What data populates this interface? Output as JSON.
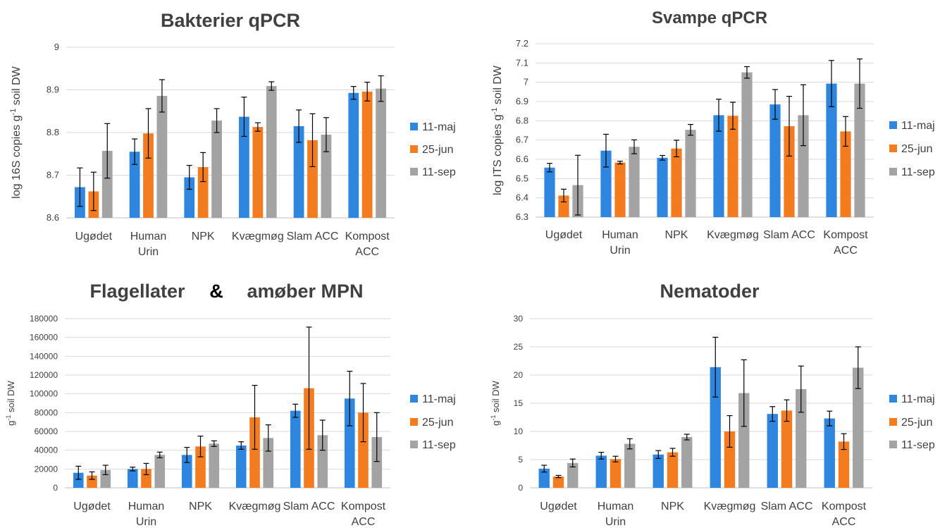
{
  "legend": {
    "entries": [
      {
        "label": "11-maj",
        "color": "#2e86de"
      },
      {
        "label": "25-jun",
        "color": "#f47c20"
      },
      {
        "label": "11-sep",
        "color": "#a3a3a3"
      }
    ]
  },
  "chart_data": [
    {
      "type": "bar",
      "title": "Bakterier qPCR",
      "ylabel": "log 16S copies g-1 soil DW",
      "ylabel_main": "log 16S copies g",
      "ylabel_sup": "-1",
      "ylabel_tail": " soil DW",
      "ylim": [
        8.6,
        9.0
      ],
      "yticks": [
        8.6,
        8.7,
        8.8,
        8.9,
        9
      ],
      "tick_labels": [
        "8.6",
        "8.7",
        "8.8",
        "8.9",
        "9"
      ],
      "grid": true,
      "legend_position": "right",
      "categories": [
        [
          "Ugødet"
        ],
        [
          "Human",
          "Urin"
        ],
        [
          "NPK"
        ],
        [
          "Kvægmøg"
        ],
        [
          "Slam ACC"
        ],
        [
          "Kompost",
          "ACC"
        ]
      ],
      "series": [
        {
          "name": "11-maj",
          "values": [
            8.672,
            8.755,
            8.695,
            8.837,
            8.815,
            8.893
          ],
          "errors": [
            0.045,
            0.03,
            0.028,
            0.046,
            0.038,
            0.015
          ]
        },
        {
          "name": "25-jun",
          "values": [
            8.662,
            8.798,
            8.719,
            8.813,
            8.782,
            8.896
          ],
          "errors": [
            0.045,
            0.058,
            0.034,
            0.01,
            0.062,
            0.022
          ]
        },
        {
          "name": "11-sep",
          "values": [
            8.757,
            8.886,
            8.828,
            8.909,
            8.795,
            8.903
          ],
          "errors": [
            0.064,
            0.038,
            0.028,
            0.01,
            0.04,
            0.03
          ]
        }
      ]
    },
    {
      "type": "bar",
      "title": "Svampe qPCR",
      "ylabel": "log ITS copies g-1 soil DW",
      "ylabel_main": "log ITS copies g",
      "ylabel_sup": "-1",
      "ylabel_tail": " soil DW",
      "ylim": [
        6.3,
        7.2
      ],
      "yticks": [
        6.3,
        6.4,
        6.5,
        6.6,
        6.7,
        6.8,
        6.9,
        7.0,
        7.1,
        7.2
      ],
      "tick_labels": [
        "6.3",
        "6.4",
        "6.5",
        "6.6",
        "6.7",
        "6.8",
        "6.9",
        "7",
        "7.1",
        "7.2"
      ],
      "grid": true,
      "legend_position": "right",
      "categories": [
        [
          "Ugødet"
        ],
        [
          "Human",
          "Urin"
        ],
        [
          "NPK"
        ],
        [
          "Kvægmøg"
        ],
        [
          "Slam ACC"
        ],
        [
          "Kompost",
          "ACC"
        ]
      ],
      "series": [
        {
          "name": "11-maj",
          "values": [
            6.557,
            6.645,
            6.608,
            6.829,
            6.885,
            6.993
          ],
          "errors": [
            0.022,
            0.085,
            0.012,
            0.083,
            0.077,
            0.12
          ]
        },
        {
          "name": "25-jun",
          "values": [
            6.412,
            6.583,
            6.656,
            6.826,
            6.772,
            6.745
          ],
          "errors": [
            0.033,
            0.007,
            0.043,
            0.07,
            0.155,
            0.077
          ]
        },
        {
          "name": "11-sep",
          "values": [
            6.466,
            6.665,
            6.753,
            7.051,
            6.829,
            6.993
          ],
          "errors": [
            0.155,
            0.036,
            0.028,
            0.03,
            0.158,
            0.128
          ]
        }
      ]
    },
    {
      "type": "bar",
      "title": "Flagellater & amøber MPN",
      "title_left": "Flagellater",
      "title_amp": "&",
      "title_right": "amøber MPN",
      "ylabel": "g-1 soil DW",
      "ylabel_main": "g",
      "ylabel_sup": "-1",
      "ylabel_tail": " soil DW",
      "ylim": [
        0,
        180000
      ],
      "yticks": [
        0,
        20000,
        40000,
        60000,
        80000,
        100000,
        120000,
        140000,
        160000,
        180000
      ],
      "tick_labels": [
        "0",
        "20000",
        "40000",
        "60000",
        "80000",
        "100000",
        "120000",
        "140000",
        "160000",
        "180000"
      ],
      "grid": true,
      "legend_position": "right",
      "categories": [
        [
          "Ugødet"
        ],
        [
          "Human",
          "Urin"
        ],
        [
          "NPK"
        ],
        [
          "Kvægmøg"
        ],
        [
          "Slam ACC"
        ],
        [
          "Kompost",
          "ACC"
        ]
      ],
      "series": [
        {
          "name": "11-maj",
          "values": [
            16000,
            20000,
            35000,
            45000,
            82000,
            95000
          ],
          "errors": [
            7000,
            2000,
            8000,
            4000,
            7000,
            29000
          ]
        },
        {
          "name": "25-jun",
          "values": [
            13000,
            20000,
            44000,
            75000,
            106000,
            80000
          ],
          "errors": [
            4000,
            6000,
            11000,
            34000,
            65000,
            31000
          ]
        },
        {
          "name": "11-sep",
          "values": [
            19000,
            35000,
            47000,
            53000,
            56000,
            54000
          ],
          "errors": [
            5000,
            3000,
            3000,
            14000,
            16000,
            26000
          ]
        }
      ]
    },
    {
      "type": "bar",
      "title": "Nematoder",
      "ylabel": "g-1 soil DW",
      "ylabel_main": "g",
      "ylabel_sup": "-1",
      "ylabel_tail": " soil DW",
      "ylim": [
        0,
        30
      ],
      "yticks": [
        0,
        5,
        10,
        15,
        20,
        25,
        30
      ],
      "tick_labels": [
        "0",
        "5",
        "10",
        "15",
        "20",
        "25",
        "30"
      ],
      "grid": true,
      "legend_position": "right",
      "categories": [
        [
          "Ugødet"
        ],
        [
          "Human",
          "Urin"
        ],
        [
          "NPK"
        ],
        [
          "Kvægmøg"
        ],
        [
          "Slam ACC"
        ],
        [
          "Kompost",
          "ACC"
        ]
      ],
      "series": [
        {
          "name": "11-maj",
          "values": [
            3.4,
            5.7,
            5.9,
            21.4,
            13.1,
            12.3
          ],
          "errors": [
            0.6,
            0.6,
            0.7,
            5.3,
            1.3,
            1.3
          ]
        },
        {
          "name": "25-jun",
          "values": [
            2.0,
            5.1,
            6.3,
            10.0,
            13.7,
            8.2
          ],
          "errors": [
            0.2,
            0.5,
            0.7,
            2.8,
            1.9,
            1.4
          ]
        },
        {
          "name": "11-sep",
          "values": [
            4.4,
            7.8,
            9.0,
            16.8,
            17.5,
            21.3
          ],
          "errors": [
            0.7,
            0.9,
            0.5,
            5.9,
            4.1,
            3.7
          ]
        }
      ]
    }
  ]
}
